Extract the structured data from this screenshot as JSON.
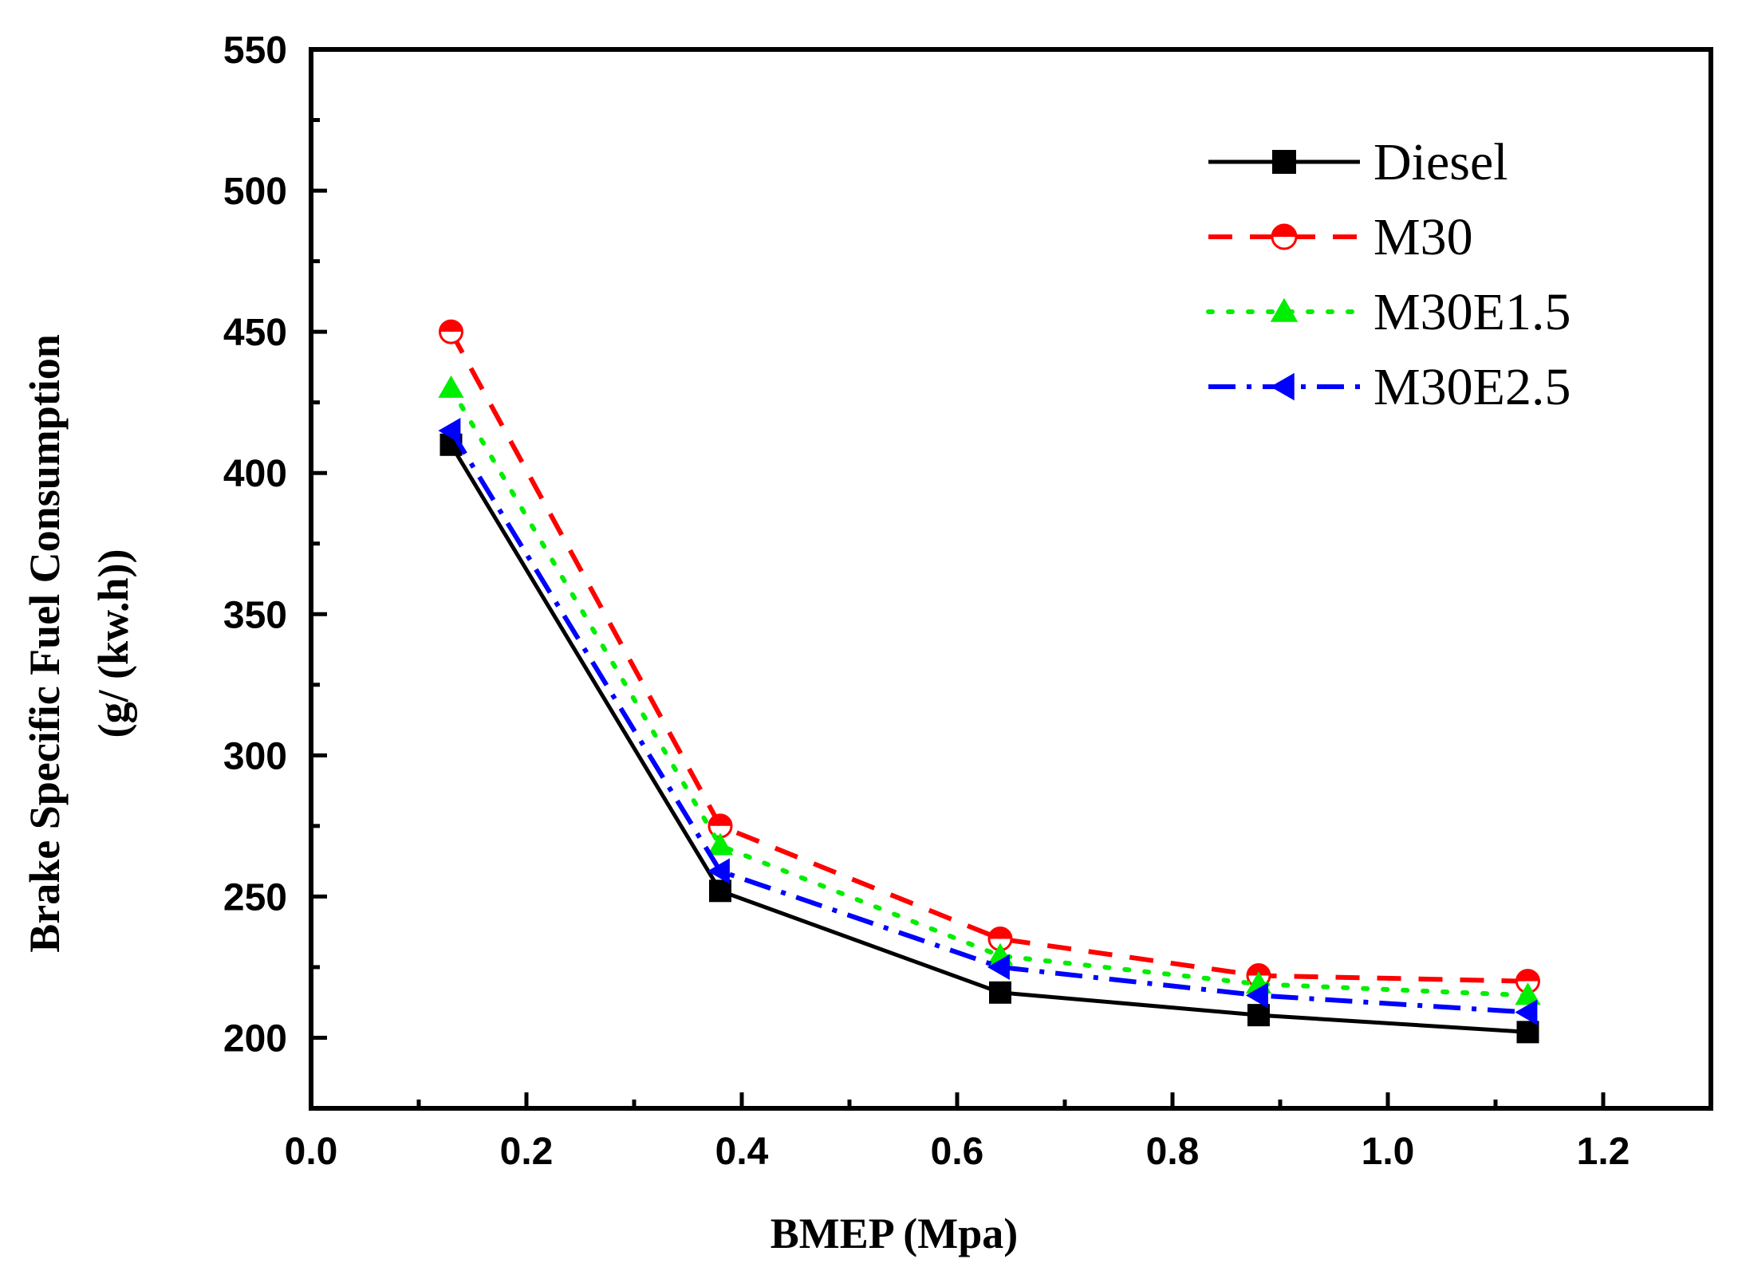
{
  "chart_data": {
    "type": "line",
    "title": "",
    "xlabel": "BMEP (Mpa)",
    "ylabel_line1": "Brake Specific Fuel Consumption",
    "ylabel_line2": "(g/ (kw.h))",
    "xlim": [
      0.0,
      1.3
    ],
    "ylim": [
      175,
      550
    ],
    "x_ticks": [
      0.0,
      0.2,
      0.4,
      0.6,
      0.8,
      1.0,
      1.2
    ],
    "x_tick_labels": [
      "0.0",
      "0.2",
      "0.4",
      "0.6",
      "0.8",
      "1.0",
      "1.2"
    ],
    "y_ticks": [
      200,
      250,
      300,
      350,
      400,
      450,
      500,
      550
    ],
    "y_tick_labels": [
      "200",
      "250",
      "300",
      "350",
      "400",
      "450",
      "500",
      "550"
    ],
    "grid": false,
    "legend_position": "top-right",
    "x": [
      0.13,
      0.38,
      0.64,
      0.88,
      1.13
    ],
    "series": [
      {
        "name": "Diesel",
        "color": "#000000",
        "dash": "solid",
        "marker": "square",
        "values": [
          410,
          252,
          216,
          208,
          202
        ]
      },
      {
        "name": "M30",
        "color": "#ff0000",
        "dash": "dash",
        "marker": "half-circle",
        "values": [
          450,
          275,
          235,
          222,
          220
        ]
      },
      {
        "name": "M30E1.5",
        "color": "#00ee00",
        "dash": "dot",
        "marker": "triangle-up",
        "values": [
          430,
          268,
          229,
          219,
          215
        ]
      },
      {
        "name": "M30E2.5",
        "color": "#0000ff",
        "dash": "dashdot",
        "marker": "triangle-left",
        "values": [
          415,
          259,
          225,
          215,
          209
        ]
      }
    ]
  }
}
